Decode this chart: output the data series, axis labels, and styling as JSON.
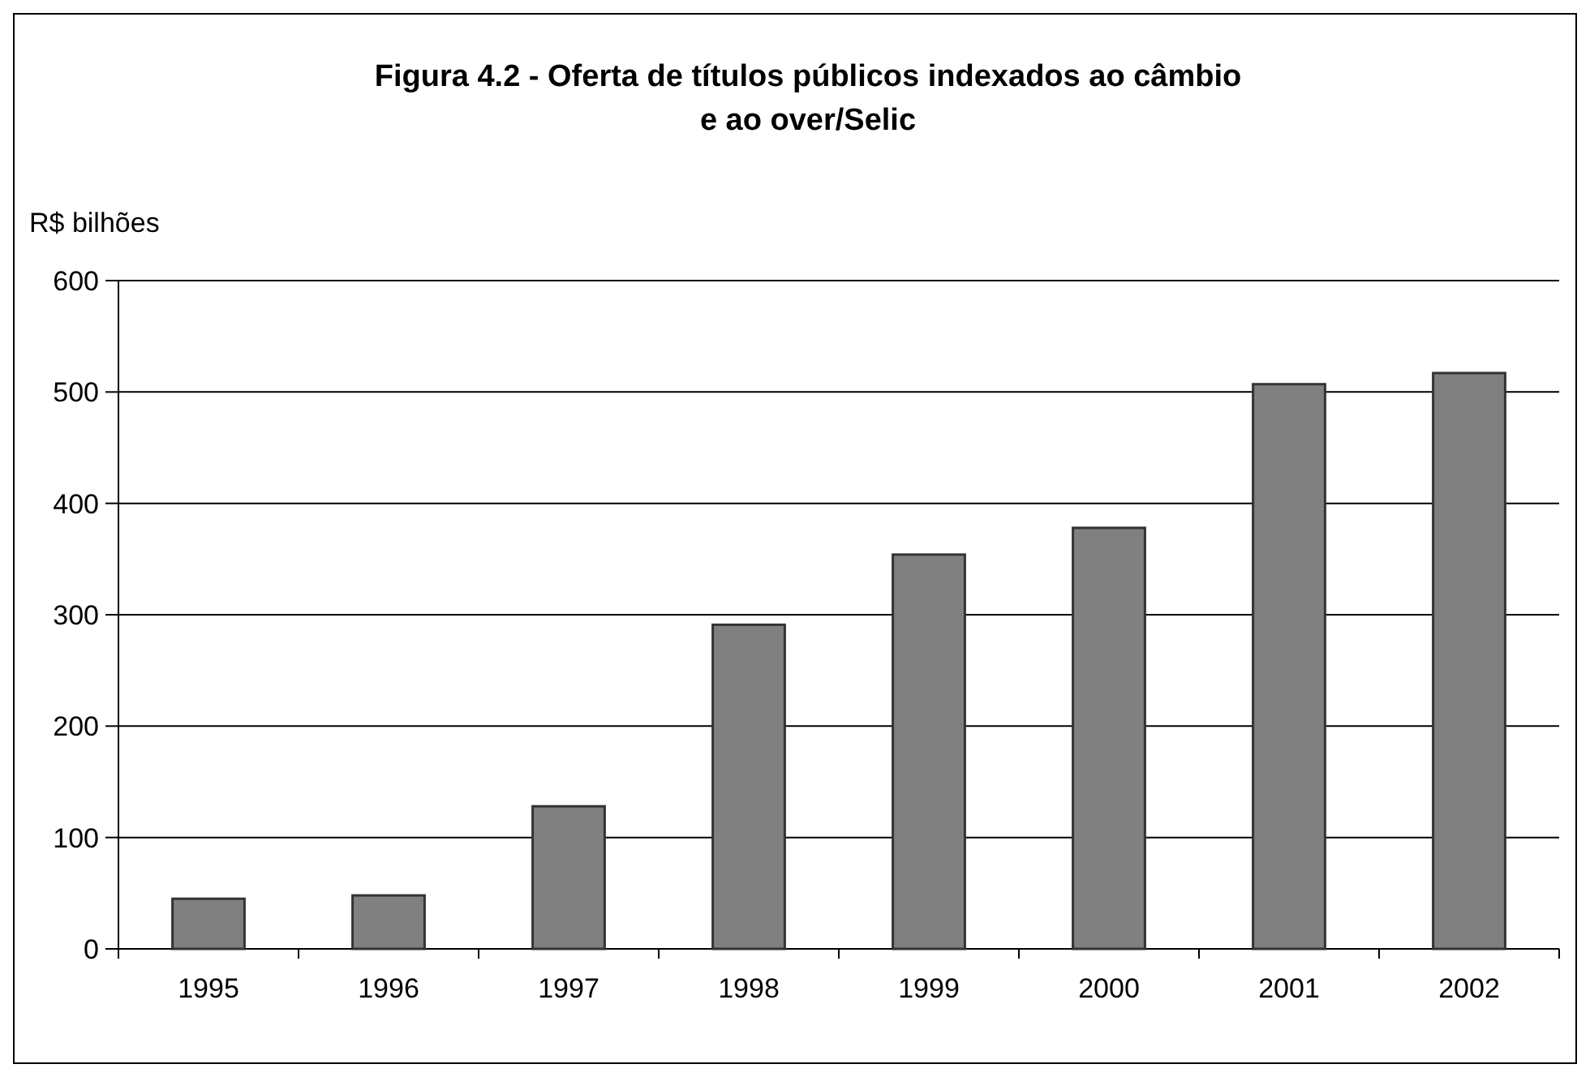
{
  "chart_data": {
    "type": "bar",
    "title": "Figura 4.2 - Oferta de títulos públicos indexados ao câmbio\ne ao over/Selic",
    "ylabel": "R$ bilhões",
    "categories": [
      "1995",
      "1996",
      "1997",
      "1998",
      "1999",
      "2000",
      "2001",
      "2002"
    ],
    "values": [
      45,
      48,
      128,
      291,
      354,
      378,
      507,
      517
    ],
    "color": "#808080",
    "ylim": [
      0,
      600
    ],
    "yticks": [
      0,
      100,
      200,
      300,
      400,
      500,
      600
    ],
    "grid": "y"
  }
}
